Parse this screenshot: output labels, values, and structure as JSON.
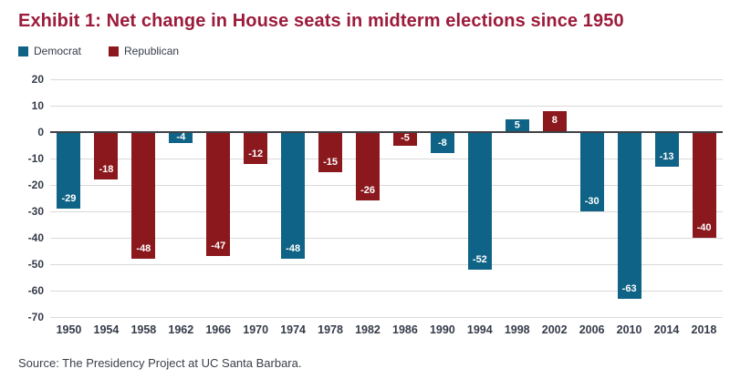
{
  "header": {
    "title": "Exhibit 1: Net change in House seats in midterm elections since 1950"
  },
  "footer": {
    "source": "Source: The Presidency Project at UC Santa Barbara."
  },
  "colors": {
    "democrat": "#0f6386",
    "republican": "#8a181c",
    "title": "#9c1b3a",
    "axis_text": "#353b49",
    "gridline": "#d9d9d9",
    "zero_line": "#3f4247",
    "bar_label_text": "#ffffff"
  },
  "chart_data": {
    "type": "bar",
    "title": "Exhibit 1: Net change in House seats in midterm elections since 1950",
    "xlabel": "",
    "ylabel": "",
    "categories": [
      "1950",
      "1954",
      "1958",
      "1962",
      "1966",
      "1970",
      "1974",
      "1978",
      "1982",
      "1986",
      "1990",
      "1994",
      "1998",
      "2002",
      "2006",
      "2010",
      "2014",
      "2018"
    ],
    "values": [
      -29,
      -18,
      -48,
      -4,
      -47,
      -12,
      -48,
      -15,
      -26,
      -5,
      -8,
      -52,
      5,
      8,
      -30,
      -63,
      -13,
      -40
    ],
    "series_party": [
      "Democrat",
      "Republican",
      "Republican",
      "Democrat",
      "Republican",
      "Republican",
      "Democrat",
      "Republican",
      "Republican",
      "Republican",
      "Democrat",
      "Democrat",
      "Democrat",
      "Republican",
      "Democrat",
      "Democrat",
      "Democrat",
      "Republican"
    ],
    "party_colors": {
      "Democrat": "#0f6386",
      "Republican": "#8a181c"
    },
    "legend": [
      "Democrat",
      "Republican"
    ],
    "legend_position": "top-left",
    "ylim": [
      -70,
      20
    ],
    "yticks": [
      20,
      10,
      0,
      -10,
      -20,
      -30,
      -40,
      -50,
      -60,
      -70
    ],
    "grid": true,
    "bar_labels_shown": true
  }
}
